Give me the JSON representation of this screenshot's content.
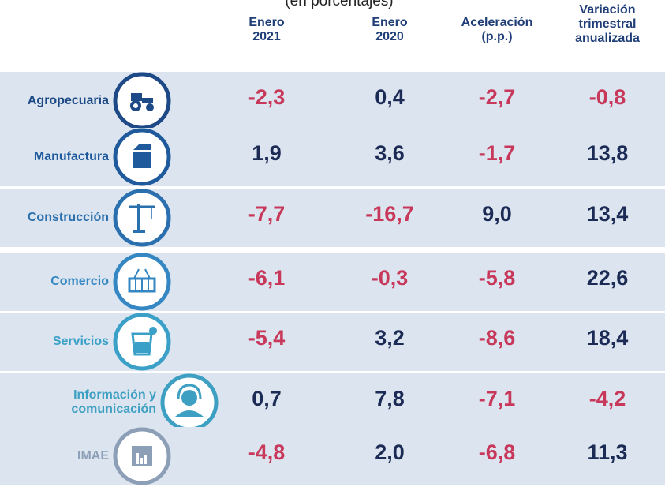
{
  "subtitle": "(en porcentajes)",
  "table": {
    "headers": [
      "Enero\n2021",
      "Enero\n2020",
      "Aceleración\n(p.p.)",
      "Variación\ntrimestral\nanualizada"
    ],
    "rows": [
      {
        "label": "Agropecuaria",
        "values": [
          "-2,3",
          "0,4",
          "-2,7",
          "-0,8"
        ]
      },
      {
        "label": "Manufactura",
        "values": [
          "1,9",
          "3,6",
          "-1,7",
          "13,8"
        ]
      },
      {
        "label": "Construcción",
        "values": [
          "-7,7",
          "-16,7",
          "9,0",
          "13,4"
        ]
      },
      {
        "label": "Comercio",
        "values": [
          "-6,1",
          "-0,3",
          "-5,8",
          "22,6"
        ]
      },
      {
        "label": "Servicios",
        "values": [
          "-5,4",
          "3,2",
          "-8,6",
          "18,4"
        ]
      },
      {
        "label": "Información y\ncomunicación",
        "values": [
          "0,7",
          "7,8",
          "-7,1",
          "-4,2"
        ]
      },
      {
        "label": "IMAE",
        "values": [
          "-4,8",
          "2,0",
          "-6,8",
          "11,3"
        ]
      }
    ]
  }
}
